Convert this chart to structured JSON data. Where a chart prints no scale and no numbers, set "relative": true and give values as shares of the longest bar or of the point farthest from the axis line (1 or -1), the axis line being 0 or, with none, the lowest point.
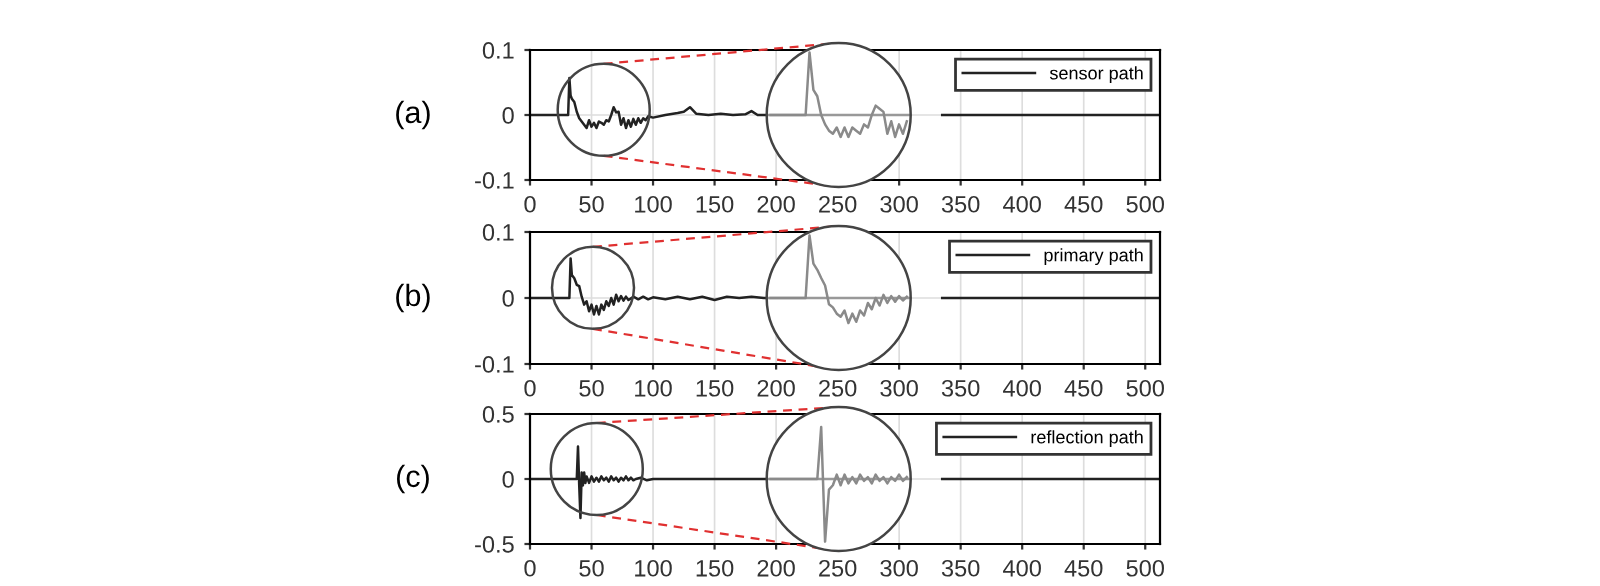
{
  "chart_data": [
    {
      "type": "line",
      "ylabel": "(a)",
      "xlim": [
        0,
        512
      ],
      "xticks": [
        0,
        50,
        100,
        150,
        200,
        250,
        300,
        350,
        400,
        450,
        500
      ],
      "ylim": [
        -0.1,
        0.1
      ],
      "yticks": [
        -0.1,
        0,
        0.1
      ],
      "grid": true,
      "legend": "top right",
      "series": [
        {
          "name": "sensor path",
          "color": "#222222",
          "x": [
            0,
            30,
            31,
            32,
            33,
            34,
            36,
            38,
            40,
            42,
            44,
            46,
            48,
            50,
            52,
            54,
            56,
            58,
            60,
            62,
            64,
            66,
            68,
            70,
            72,
            74,
            76,
            78,
            80,
            82,
            84,
            86,
            88,
            90,
            92,
            94,
            96,
            100,
            110,
            120,
            125,
            130,
            135,
            145,
            155,
            165,
            175,
            180,
            185,
            195,
            260,
            335,
            512
          ],
          "values": [
            0,
            0,
            0,
            0.057,
            0.03,
            0.025,
            0.02,
            0.005,
            -0.005,
            -0.01,
            -0.015,
            -0.02,
            -0.008,
            -0.018,
            -0.012,
            -0.02,
            -0.01,
            -0.012,
            -0.015,
            -0.008,
            -0.01,
            0,
            0.012,
            0.004,
            0.005,
            -0.015,
            -0.005,
            -0.02,
            -0.008,
            -0.018,
            -0.006,
            -0.015,
            -0.005,
            -0.012,
            -0.005,
            -0.008,
            -0.002,
            -0.004,
            0,
            0.003,
            0.005,
            0.012,
            0.002,
            0,
            0.002,
            0,
            0.001,
            0.006,
            0,
            0,
            null,
            0,
            0
          ]
        }
      ]
    },
    {
      "type": "line",
      "relative": true,
      "categories": [
        null,
        null,
        null,
        null,
        null,
        null,
        null,
        null,
        null,
        null,
        null,
        null,
        null,
        null,
        null,
        null,
        null,
        null,
        null,
        null,
        null,
        null,
        null,
        null,
        null,
        null,
        null,
        null,
        null,
        null,
        null,
        null,
        null,
        null,
        null,
        null
      ],
      "series": [
        {
          "color": "#8a8a8a",
          "values": [
            0,
            0,
            0,
            0,
            0,
            0,
            0,
            0,
            0,
            0,
            1,
            0.4,
            0.3,
            0,
            -0.15,
            -0.25,
            -0.3,
            -0.2,
            -0.35,
            -0.2,
            -0.35,
            -0.2,
            -0.25,
            -0.3,
            -0.15,
            -0.2,
            0,
            0.15,
            0.1,
            0.05,
            -0.3,
            -0.1,
            -0.35,
            -0.15,
            -0.3,
            -0.1
          ]
        }
      ]
    },
    {
      "type": "line",
      "ylabel": "(b)",
      "xlim": [
        0,
        512
      ],
      "xticks": [
        0,
        50,
        100,
        150,
        200,
        250,
        300,
        350,
        400,
        450,
        500
      ],
      "ylim": [
        -0.1,
        0.1
      ],
      "yticks": [
        -0.1,
        0,
        0.1
      ],
      "grid": true,
      "legend": "top right",
      "series": [
        {
          "name": "primary path",
          "color": "#222222",
          "x": [
            0,
            32,
            33,
            34,
            36,
            38,
            40,
            42,
            44,
            46,
            48,
            50,
            52,
            54,
            56,
            58,
            60,
            62,
            64,
            66,
            68,
            70,
            72,
            74,
            76,
            78,
            80,
            84,
            88,
            92,
            96,
            100,
            110,
            120,
            130,
            140,
            150,
            160,
            170,
            180,
            190,
            195,
            260,
            335,
            512
          ],
          "values": [
            0,
            0,
            0.06,
            0.035,
            0.03,
            0.02,
            0.018,
            0.002,
            -0.01,
            -0.005,
            -0.02,
            -0.01,
            -0.025,
            -0.012,
            -0.025,
            -0.01,
            -0.018,
            -0.005,
            -0.012,
            0,
            -0.01,
            0.005,
            -0.005,
            0.003,
            -0.004,
            0.002,
            -0.003,
            0.002,
            -0.002,
            0.002,
            -0.002,
            0.001,
            -0.002,
            0.002,
            -0.002,
            0.002,
            -0.003,
            0.002,
            0,
            0.002,
            0,
            0,
            null,
            0,
            0
          ]
        }
      ]
    },
    {
      "type": "line",
      "relative": true,
      "categories": [
        null,
        null,
        null,
        null,
        null,
        null,
        null,
        null,
        null,
        null,
        null,
        null,
        null,
        null,
        null,
        null,
        null,
        null,
        null,
        null,
        null,
        null,
        null,
        null,
        null,
        null,
        null,
        null,
        null,
        null,
        null,
        null,
        null,
        null,
        null,
        null
      ],
      "series": [
        {
          "color": "#8a8a8a",
          "values": [
            0,
            0,
            0,
            0,
            0,
            0,
            0,
            0,
            0,
            0,
            1,
            0.55,
            0.45,
            0.32,
            0.2,
            -0.1,
            -0.15,
            -0.25,
            -0.3,
            -0.2,
            -0.4,
            -0.25,
            -0.38,
            -0.2,
            -0.28,
            -0.08,
            -0.18,
            0,
            -0.12,
            0.05,
            -0.08,
            0.03,
            -0.06,
            0.03,
            -0.04,
            0.02
          ]
        }
      ]
    },
    {
      "type": "line",
      "ylabel": "(c)",
      "xlim": [
        0,
        512
      ],
      "xticks": [
        0,
        50,
        100,
        150,
        200,
        250,
        300,
        350,
        400,
        450,
        500
      ],
      "ylim": [
        -0.5,
        0.5
      ],
      "yticks": [
        -0.5,
        0,
        0.5
      ],
      "grid": true,
      "legend": "top right",
      "series": [
        {
          "name": "reflection path",
          "color": "#222222",
          "x": [
            0,
            37,
            38,
            39,
            40,
            41,
            42,
            43,
            44,
            45,
            46,
            48,
            50,
            52,
            54,
            56,
            58,
            60,
            62,
            64,
            66,
            68,
            70,
            72,
            74,
            76,
            78,
            80,
            82,
            84,
            86,
            90,
            95,
            100,
            110,
            130,
            195,
            260,
            335,
            512
          ],
          "values": [
            0,
            0,
            0,
            0.25,
            -0.05,
            -0.3,
            0.05,
            -0.05,
            0.05,
            -0.03,
            0.02,
            -0.03,
            0.02,
            -0.02,
            0.01,
            -0.02,
            0.02,
            -0.01,
            0.01,
            -0.02,
            0.02,
            -0.01,
            0.01,
            -0.02,
            0.01,
            -0.01,
            0.02,
            -0.01,
            0.01,
            -0.01,
            0,
            0.01,
            -0.01,
            0,
            0,
            0,
            0,
            null,
            0,
            0
          ]
        }
      ]
    },
    {
      "type": "line",
      "relative": true,
      "categories": [
        null,
        null,
        null,
        null,
        null,
        null,
        null,
        null,
        null,
        null,
        null,
        null,
        null,
        null,
        null,
        null,
        null,
        null,
        null,
        null,
        null,
        null,
        null,
        null,
        null,
        null,
        null,
        null,
        null,
        null,
        null,
        null,
        null,
        null,
        null,
        null
      ],
      "series": [
        {
          "color": "#8a8a8a",
          "values": [
            0,
            0,
            0,
            0,
            0,
            0,
            0,
            0,
            0,
            0,
            0,
            0,
            0,
            0.83,
            -1,
            -0.17,
            -0.1,
            0.07,
            -0.1,
            0.07,
            -0.07,
            0.03,
            -0.07,
            0.07,
            -0.03,
            0.03,
            -0.07,
            0.07,
            -0.03,
            0.03,
            -0.07,
            0.03,
            -0.03,
            0.07,
            -0.03,
            0.03
          ]
        }
      ]
    }
  ]
}
